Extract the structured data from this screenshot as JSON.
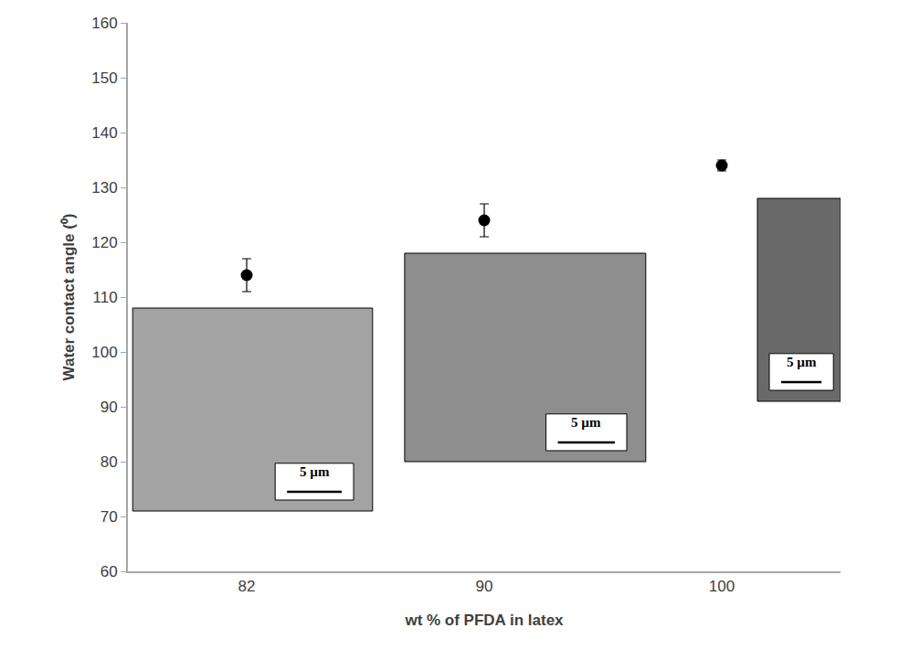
{
  "chart_data": {
    "type": "scatter",
    "x_label": "wt % of PFDA in latex",
    "y_label": "Water contact angle (⁰)",
    "categories": [
      "82",
      "90",
      "100"
    ],
    "values": [
      114,
      124,
      134
    ],
    "errors": [
      3,
      3,
      1
    ],
    "color": "#000000",
    "marker": "circle",
    "ylim": [
      60,
      160
    ],
    "yticks": [
      60,
      70,
      80,
      90,
      100,
      110,
      120,
      130,
      140,
      150,
      160
    ],
    "grid": false,
    "scale_bar_labels": [
      "5 µm",
      "5 µm",
      "5 µm"
    ]
  }
}
